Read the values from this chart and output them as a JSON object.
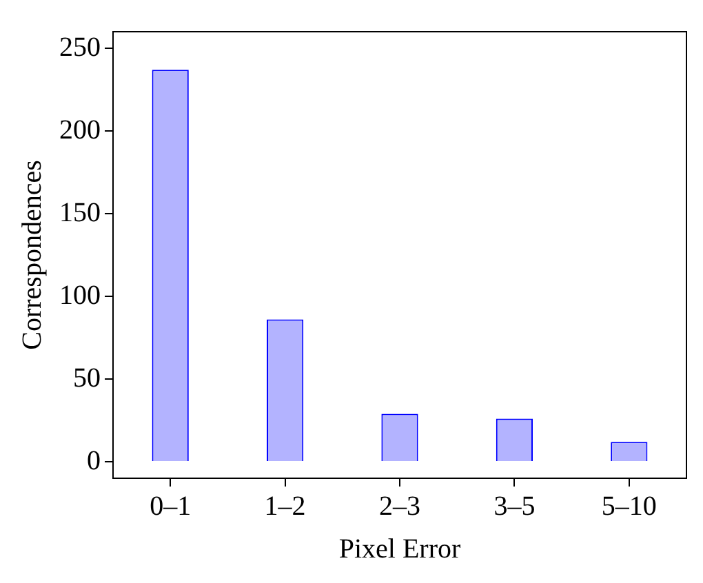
{
  "chart_data": {
    "type": "bar",
    "xlabel": "Pixel Error",
    "ylabel": "Correspondences",
    "categories": [
      "0–1",
      "1–2",
      "2–3",
      "3–5",
      "5–10"
    ],
    "series": [
      {
        "color": "#b3b3ff",
        "values": [
          237,
          86,
          29,
          26,
          12
        ]
      }
    ],
    "ylim": [
      -10,
      260
    ],
    "yticks": [
      0,
      50,
      100,
      150,
      200,
      250
    ],
    "grid": false,
    "legend": false
  }
}
